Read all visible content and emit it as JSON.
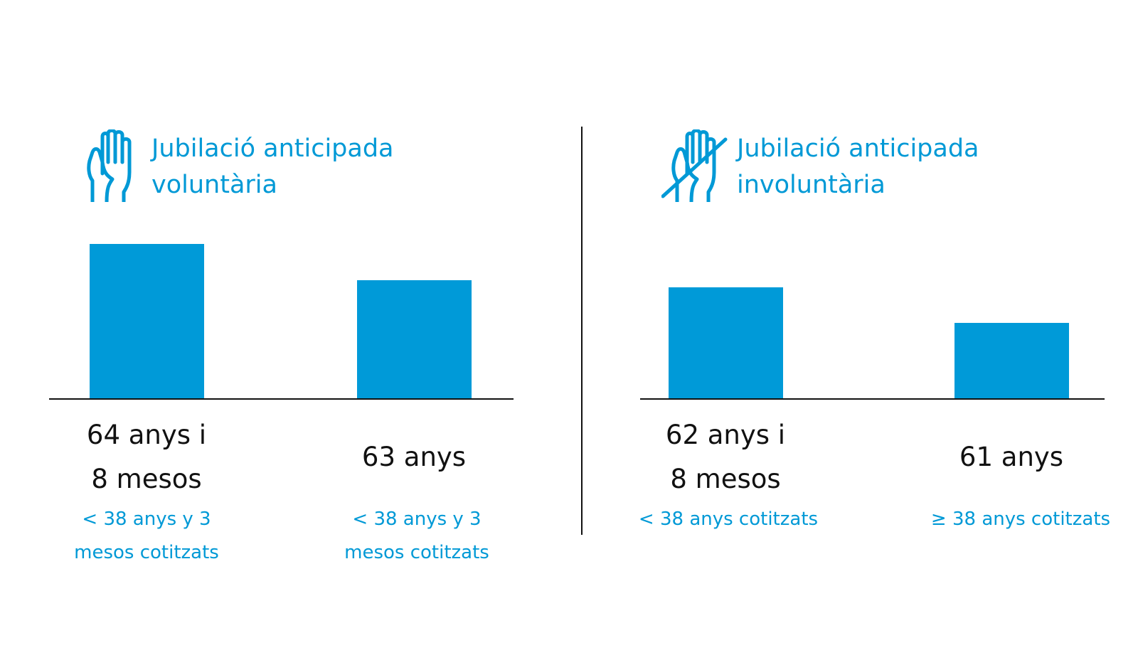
{
  "chart_data": [
    {
      "type": "bar",
      "title_lines": [
        "Jubilació anticipada",
        "voluntària"
      ],
      "icon": "raised-hand-icon",
      "categories": [
        {
          "value_lines": [
            "64 anys i",
            "8 mesos"
          ],
          "note_lines": [
            "< 38 anys y 3",
            "mesos cotitzats"
          ]
        },
        {
          "value_lines": [
            "63 anys"
          ],
          "note_lines": [
            "< 38 anys y 3",
            "mesos cotitzats"
          ]
        }
      ],
      "values": [
        64.67,
        63
      ],
      "unit": "anys"
    },
    {
      "type": "bar",
      "title_lines": [
        "Jubilació anticipada",
        "involuntària"
      ],
      "icon": "crossed-hand-icon",
      "categories": [
        {
          "value_lines": [
            "62 anys i",
            "8 mesos"
          ],
          "note_lines": [
            "< 38 anys cotitzats"
          ]
        },
        {
          "value_lines": [
            "61 anys"
          ],
          "note_lines": [
            "≥ 38 anys cotitzats"
          ]
        }
      ],
      "values": [
        62.67,
        61
      ],
      "unit": "anys"
    }
  ],
  "colors": {
    "accent": "#009ad8",
    "text": "#111111"
  }
}
